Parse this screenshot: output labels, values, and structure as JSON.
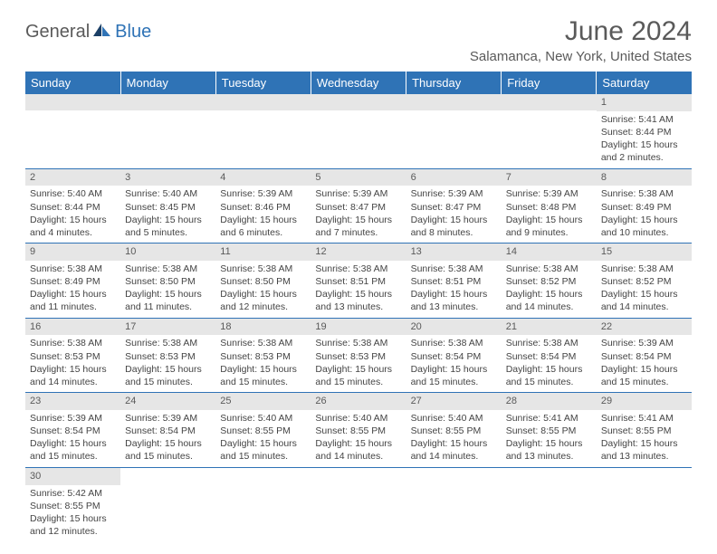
{
  "brand": {
    "text_a": "General",
    "text_b": "Blue"
  },
  "title": "June 2024",
  "location": "Salamanca, New York, United States",
  "colors": {
    "header_bg": "#2f73b6",
    "header_text": "#ffffff",
    "daynum_bg": "#e6e6e6",
    "row_border": "#2f73b6",
    "text": "#444444",
    "title_text": "#5a5a5a"
  },
  "day_headers": [
    "Sunday",
    "Monday",
    "Tuesday",
    "Wednesday",
    "Thursday",
    "Friday",
    "Saturday"
  ],
  "weeks": [
    [
      null,
      null,
      null,
      null,
      null,
      null,
      {
        "n": "1",
        "sunrise": "5:41 AM",
        "sunset": "8:44 PM",
        "daylight": "15 hours and 2 minutes."
      }
    ],
    [
      {
        "n": "2",
        "sunrise": "5:40 AM",
        "sunset": "8:44 PM",
        "daylight": "15 hours and 4 minutes."
      },
      {
        "n": "3",
        "sunrise": "5:40 AM",
        "sunset": "8:45 PM",
        "daylight": "15 hours and 5 minutes."
      },
      {
        "n": "4",
        "sunrise": "5:39 AM",
        "sunset": "8:46 PM",
        "daylight": "15 hours and 6 minutes."
      },
      {
        "n": "5",
        "sunrise": "5:39 AM",
        "sunset": "8:47 PM",
        "daylight": "15 hours and 7 minutes."
      },
      {
        "n": "6",
        "sunrise": "5:39 AM",
        "sunset": "8:47 PM",
        "daylight": "15 hours and 8 minutes."
      },
      {
        "n": "7",
        "sunrise": "5:39 AM",
        "sunset": "8:48 PM",
        "daylight": "15 hours and 9 minutes."
      },
      {
        "n": "8",
        "sunrise": "5:38 AM",
        "sunset": "8:49 PM",
        "daylight": "15 hours and 10 minutes."
      }
    ],
    [
      {
        "n": "9",
        "sunrise": "5:38 AM",
        "sunset": "8:49 PM",
        "daylight": "15 hours and 11 minutes."
      },
      {
        "n": "10",
        "sunrise": "5:38 AM",
        "sunset": "8:50 PM",
        "daylight": "15 hours and 11 minutes."
      },
      {
        "n": "11",
        "sunrise": "5:38 AM",
        "sunset": "8:50 PM",
        "daylight": "15 hours and 12 minutes."
      },
      {
        "n": "12",
        "sunrise": "5:38 AM",
        "sunset": "8:51 PM",
        "daylight": "15 hours and 13 minutes."
      },
      {
        "n": "13",
        "sunrise": "5:38 AM",
        "sunset": "8:51 PM",
        "daylight": "15 hours and 13 minutes."
      },
      {
        "n": "14",
        "sunrise": "5:38 AM",
        "sunset": "8:52 PM",
        "daylight": "15 hours and 14 minutes."
      },
      {
        "n": "15",
        "sunrise": "5:38 AM",
        "sunset": "8:52 PM",
        "daylight": "15 hours and 14 minutes."
      }
    ],
    [
      {
        "n": "16",
        "sunrise": "5:38 AM",
        "sunset": "8:53 PM",
        "daylight": "15 hours and 14 minutes."
      },
      {
        "n": "17",
        "sunrise": "5:38 AM",
        "sunset": "8:53 PM",
        "daylight": "15 hours and 15 minutes."
      },
      {
        "n": "18",
        "sunrise": "5:38 AM",
        "sunset": "8:53 PM",
        "daylight": "15 hours and 15 minutes."
      },
      {
        "n": "19",
        "sunrise": "5:38 AM",
        "sunset": "8:53 PM",
        "daylight": "15 hours and 15 minutes."
      },
      {
        "n": "20",
        "sunrise": "5:38 AM",
        "sunset": "8:54 PM",
        "daylight": "15 hours and 15 minutes."
      },
      {
        "n": "21",
        "sunrise": "5:38 AM",
        "sunset": "8:54 PM",
        "daylight": "15 hours and 15 minutes."
      },
      {
        "n": "22",
        "sunrise": "5:39 AM",
        "sunset": "8:54 PM",
        "daylight": "15 hours and 15 minutes."
      }
    ],
    [
      {
        "n": "23",
        "sunrise": "5:39 AM",
        "sunset": "8:54 PM",
        "daylight": "15 hours and 15 minutes."
      },
      {
        "n": "24",
        "sunrise": "5:39 AM",
        "sunset": "8:54 PM",
        "daylight": "15 hours and 15 minutes."
      },
      {
        "n": "25",
        "sunrise": "5:40 AM",
        "sunset": "8:55 PM",
        "daylight": "15 hours and 15 minutes."
      },
      {
        "n": "26",
        "sunrise": "5:40 AM",
        "sunset": "8:55 PM",
        "daylight": "15 hours and 14 minutes."
      },
      {
        "n": "27",
        "sunrise": "5:40 AM",
        "sunset": "8:55 PM",
        "daylight": "15 hours and 14 minutes."
      },
      {
        "n": "28",
        "sunrise": "5:41 AM",
        "sunset": "8:55 PM",
        "daylight": "15 hours and 13 minutes."
      },
      {
        "n": "29",
        "sunrise": "5:41 AM",
        "sunset": "8:55 PM",
        "daylight": "15 hours and 13 minutes."
      }
    ],
    [
      {
        "n": "30",
        "sunrise": "5:42 AM",
        "sunset": "8:55 PM",
        "daylight": "15 hours and 12 minutes."
      },
      null,
      null,
      null,
      null,
      null,
      null
    ]
  ],
  "labels": {
    "sunrise": "Sunrise: ",
    "sunset": "Sunset: ",
    "daylight": "Daylight: "
  }
}
